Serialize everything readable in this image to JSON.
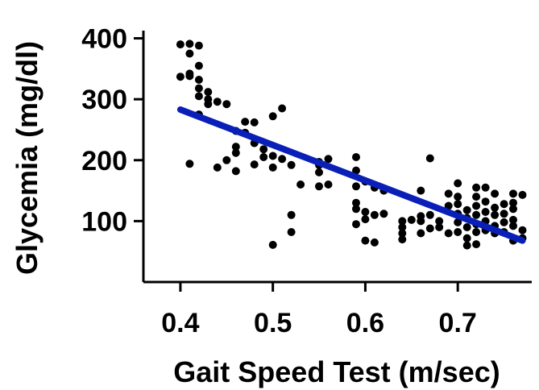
{
  "chart_data": {
    "type": "scatter",
    "title": "",
    "xlabel": "Gait Speed Test (m/sec)",
    "ylabel": "Glycemia (mg/dl)",
    "xlim": [
      0.36,
      0.78
    ],
    "ylim": [
      0,
      410
    ],
    "xticks": [
      0.4,
      0.5,
      0.6,
      0.7
    ],
    "xtick_labels": [
      "0.4",
      "0.5",
      "0.6",
      "0.7"
    ],
    "yticks": [
      100,
      200,
      300,
      400
    ],
    "ytick_labels": [
      "100",
      "200",
      "300",
      "400"
    ],
    "grid": false,
    "point_color": "#000000",
    "trend_color": "#0a1fb8",
    "trendline": {
      "x": [
        0.4,
        0.77
      ],
      "y": [
        283,
        68
      ]
    },
    "points": [
      [
        0.4,
        390
      ],
      [
        0.41,
        391
      ],
      [
        0.42,
        388
      ],
      [
        0.41,
        375
      ],
      [
        0.42,
        355
      ],
      [
        0.4,
        337
      ],
      [
        0.41,
        342
      ],
      [
        0.41,
        338
      ],
      [
        0.42,
        332
      ],
      [
        0.42,
        318
      ],
      [
        0.43,
        312
      ],
      [
        0.42,
        305
      ],
      [
        0.44,
        296
      ],
      [
        0.45,
        292
      ],
      [
        0.43,
        292
      ],
      [
        0.43,
        300
      ],
      [
        0.42,
        275
      ],
      [
        0.41,
        194
      ],
      [
        0.44,
        188
      ],
      [
        0.45,
        200
      ],
      [
        0.46,
        182
      ],
      [
        0.46,
        248
      ],
      [
        0.47,
        245
      ],
      [
        0.46,
        222
      ],
      [
        0.46,
        212
      ],
      [
        0.47,
        263
      ],
      [
        0.48,
        262
      ],
      [
        0.48,
        228
      ],
      [
        0.49,
        218
      ],
      [
        0.49,
        205
      ],
      [
        0.48,
        193
      ],
      [
        0.5,
        207
      ],
      [
        0.5,
        188
      ],
      [
        0.5,
        272
      ],
      [
        0.51,
        285
      ],
      [
        0.51,
        202
      ],
      [
        0.52,
        192
      ],
      [
        0.53,
        160
      ],
      [
        0.52,
        110
      ],
      [
        0.52,
        82
      ],
      [
        0.5,
        61
      ],
      [
        0.55,
        197
      ],
      [
        0.56,
        202
      ],
      [
        0.55,
        192
      ],
      [
        0.55,
        180
      ],
      [
        0.56,
        160
      ],
      [
        0.55,
        157
      ],
      [
        0.59,
        205
      ],
      [
        0.59,
        183
      ],
      [
        0.59,
        157
      ],
      [
        0.6,
        165
      ],
      [
        0.59,
        130
      ],
      [
        0.59,
        120
      ],
      [
        0.6,
        115
      ],
      [
        0.59,
        95
      ],
      [
        0.6,
        103
      ],
      [
        0.61,
        110
      ],
      [
        0.62,
        112
      ],
      [
        0.61,
        155
      ],
      [
        0.62,
        150
      ],
      [
        0.6,
        68
      ],
      [
        0.61,
        65
      ],
      [
        0.64,
        100
      ],
      [
        0.64,
        90
      ],
      [
        0.64,
        80
      ],
      [
        0.64,
        70
      ],
      [
        0.65,
        102
      ],
      [
        0.66,
        108
      ],
      [
        0.66,
        150
      ],
      [
        0.66,
        100
      ],
      [
        0.66,
        80
      ],
      [
        0.67,
        88
      ],
      [
        0.67,
        203
      ],
      [
        0.68,
        100
      ],
      [
        0.67,
        110
      ],
      [
        0.68,
        90
      ],
      [
        0.69,
        145
      ],
      [
        0.69,
        125
      ],
      [
        0.69,
        80
      ],
      [
        0.7,
        162
      ],
      [
        0.7,
        140
      ],
      [
        0.7,
        128
      ],
      [
        0.7,
        112
      ],
      [
        0.7,
        98
      ],
      [
        0.7,
        82
      ],
      [
        0.71,
        118
      ],
      [
        0.71,
        105
      ],
      [
        0.71,
        90
      ],
      [
        0.71,
        72
      ],
      [
        0.71,
        60
      ],
      [
        0.72,
        155
      ],
      [
        0.72,
        140
      ],
      [
        0.72,
        125
      ],
      [
        0.72,
        110
      ],
      [
        0.72,
        95
      ],
      [
        0.72,
        82
      ],
      [
        0.72,
        62
      ],
      [
        0.73,
        155
      ],
      [
        0.73,
        132
      ],
      [
        0.73,
        115
      ],
      [
        0.73,
        100
      ],
      [
        0.73,
        85
      ],
      [
        0.74,
        145
      ],
      [
        0.74,
        122
      ],
      [
        0.74,
        110
      ],
      [
        0.74,
        92
      ],
      [
        0.74,
        80
      ],
      [
        0.75,
        128
      ],
      [
        0.75,
        112
      ],
      [
        0.75,
        98
      ],
      [
        0.75,
        82
      ],
      [
        0.76,
        145
      ],
      [
        0.76,
        130
      ],
      [
        0.76,
        120
      ],
      [
        0.76,
        102
      ],
      [
        0.76,
        92
      ],
      [
        0.76,
        68
      ],
      [
        0.77,
        143
      ],
      [
        0.77,
        85
      ],
      [
        0.77,
        72
      ]
    ]
  }
}
